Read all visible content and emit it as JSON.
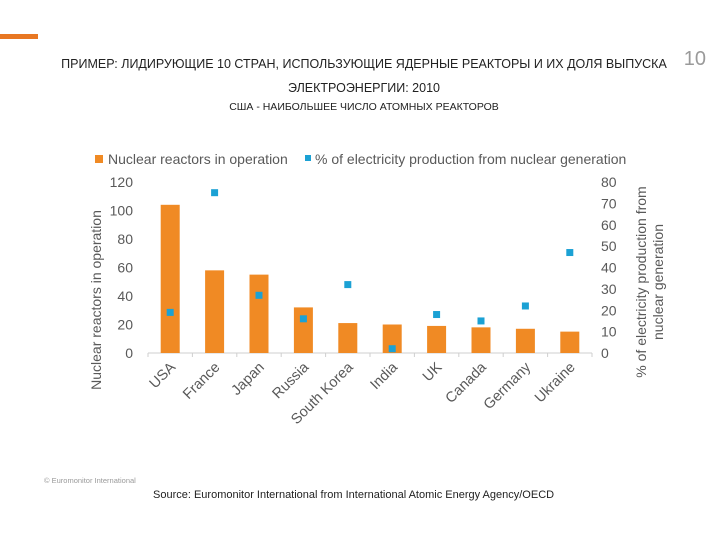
{
  "header": {
    "title": "ПРИМЕР: ЛИДИРУЮЩИЕ 10 СТРАН, ИСПОЛЬЗУЮЩИЕ ЯДЕРНЫЕ РЕАКТОРЫ И ИХ ДОЛЯ ВЫПУСКА ЭЛЕКТРОЭНЕРГИИ: 2010",
    "subtitle": "США - НАИБОЛЬШЕЕ ЧИСЛО АТОМНЫХ РЕАКТОРОВ",
    "page_number": "10"
  },
  "colors": {
    "accent": "#e87722",
    "bar": "#f08a24",
    "marker": "#1ba1d4",
    "axis": "#cfcfcf",
    "text": "#595959"
  },
  "chart_data": {
    "type": "bar",
    "categories": [
      "USA",
      "France",
      "Japan",
      "Russia",
      "South Korea",
      "India",
      "UK",
      "Canada",
      "Germany",
      "Ukraine"
    ],
    "series": [
      {
        "name": "Nuclear reactors in operation",
        "type": "bar",
        "axis": "left",
        "values": [
          104,
          58,
          55,
          32,
          21,
          20,
          19,
          18,
          17,
          15
        ]
      },
      {
        "name": "% of electricity production from nuclear generation",
        "type": "scatter",
        "axis": "right",
        "values": [
          19,
          75,
          27,
          16,
          32,
          2,
          18,
          15,
          22,
          47
        ]
      }
    ],
    "ylabel": "Nuclear reactors in operation",
    "y2label": "% of electricity production from nuclear generation",
    "ylim": [
      0,
      120
    ],
    "y2lim": [
      0,
      80
    ],
    "yticks": [
      "0",
      "20",
      "40",
      "60",
      "80",
      "100",
      "120"
    ],
    "y2ticks": [
      "0",
      "10",
      "20",
      "30",
      "40",
      "50",
      "60",
      "70",
      "80"
    ],
    "legend_position": "top",
    "grid": false
  },
  "footer": {
    "copyright": "© Euromonitor International",
    "source": "Source: Euromonitor International from International Atomic Energy Agency/OECD"
  }
}
